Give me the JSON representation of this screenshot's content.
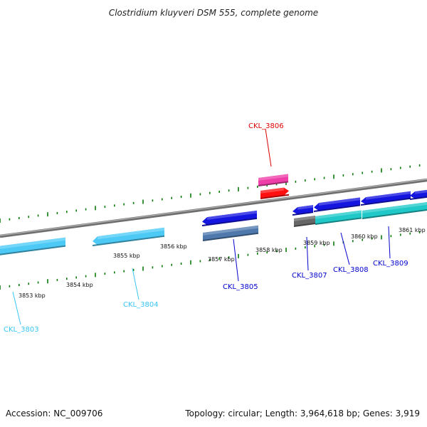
{
  "title": "Clostridium kluyveri DSM 555, complete genome",
  "footer": {
    "accession": "Accession: NC_009706",
    "summary": "Topology: circular; Length: 3,964,618 bp; Genes: 3,919"
  },
  "scale": {
    "tick_labels": [
      "3853 kbp",
      "3854 kbp",
      "3855 kbp",
      "3856 kbp",
      "3857 kbp",
      "3858 kbp",
      "3859 kbp",
      "3860 kbp",
      "3861 kbp"
    ]
  },
  "genes": [
    {
      "id": "CKL_3803",
      "color": "#39c6f4"
    },
    {
      "id": "CKL_3804",
      "color": "#39c6f4"
    },
    {
      "id": "CKL_3805",
      "color": "#0000cc"
    },
    {
      "id": "CKL_3806",
      "color": "#dd0000"
    },
    {
      "id": "CKL_3807",
      "color": "#0000cc"
    },
    {
      "id": "CKL_3808",
      "color": "#0000cc"
    },
    {
      "id": "CKL_3809",
      "color": "#0000cc"
    }
  ],
  "feature_colors": {
    "cds_light_blue": "#4cc9f5",
    "cds_blue": "#1515e0",
    "cds_steel": "#4f79ad",
    "cds_magenta": "#ee3ea8",
    "cds_red": "#ff1010",
    "cds_teal": "#20c8c8",
    "cds_gray": "#666666",
    "backbone": "#888888",
    "tick_marks": "#0b7a0b"
  }
}
